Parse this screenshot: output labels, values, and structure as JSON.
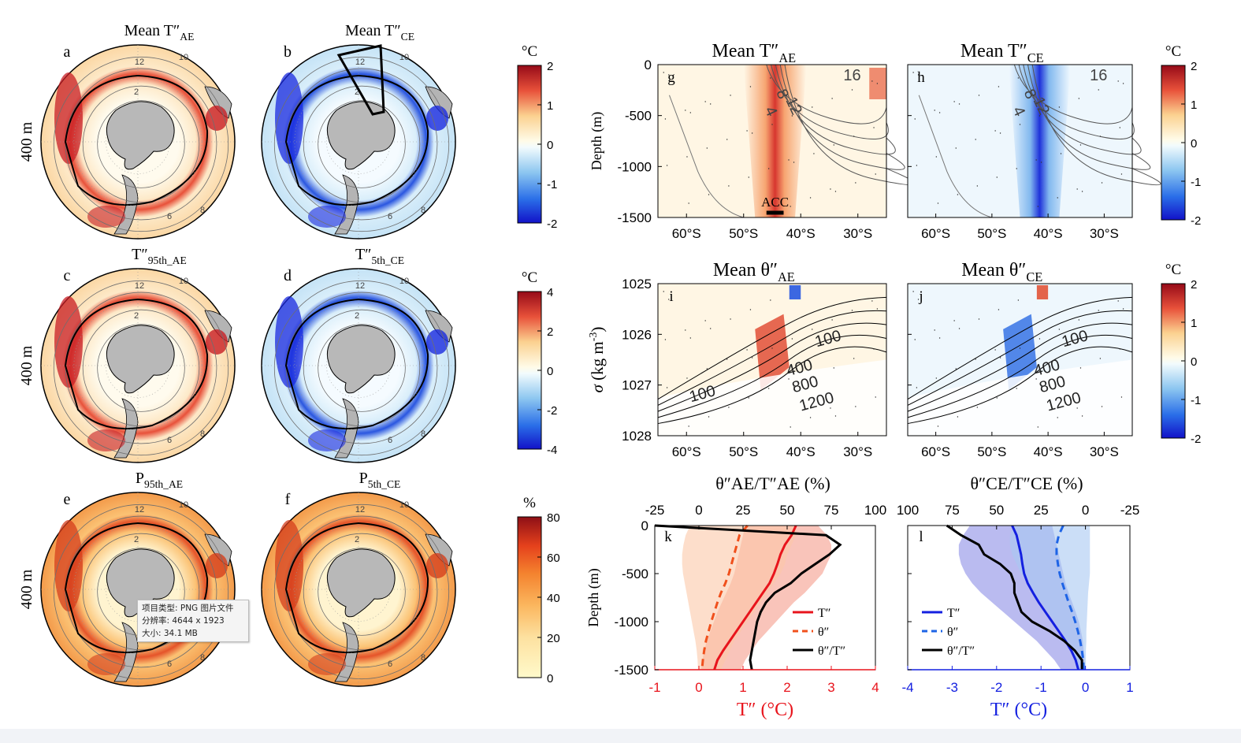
{
  "depth_label": "400 m",
  "maps": [
    {
      "id": "a",
      "title": "Mean T″",
      "sub": "AE",
      "cmap": "rdbu",
      "mode": "ae"
    },
    {
      "id": "b",
      "title": "Mean T″",
      "sub": "CE",
      "cmap": "rdbu",
      "mode": "ce"
    },
    {
      "id": "c",
      "title": "T″",
      "sub": "95th_AE",
      "cmap": "rdbu",
      "mode": "ae"
    },
    {
      "id": "d",
      "title": "T″",
      "sub": "5th_CE",
      "cmap": "rdbu",
      "mode": "ce"
    },
    {
      "id": "e",
      "title": "P",
      "sub": "95th_AE",
      "cmap": "ylor",
      "mode": "p"
    },
    {
      "id": "f",
      "title": "P",
      "sub": "5th_CE",
      "cmap": "ylor",
      "mode": "p"
    }
  ],
  "map_contour_labels": [
    "2",
    "6",
    "8",
    "10",
    "12"
  ],
  "colorbars": [
    {
      "unit": "°C",
      "ticks": [
        "2",
        "1",
        "0",
        "-1",
        "-2"
      ],
      "cmap": "rdbu"
    },
    {
      "unit": "°C",
      "ticks": [
        "4",
        "2",
        "0",
        "-2",
        "-4"
      ],
      "cmap": "rdbu"
    },
    {
      "unit": "%",
      "ticks": [
        "80",
        "60",
        "40",
        "20",
        "0"
      ],
      "cmap": "ylor"
    },
    {
      "unit": "°C",
      "ticks": [
        "2",
        "1",
        "0",
        "-1",
        "-2"
      ],
      "cmap": "rdbu"
    },
    {
      "unit": "°C",
      "ticks": [
        "2",
        "1",
        "0",
        "-1",
        "-2"
      ],
      "cmap": "rdbu"
    }
  ],
  "tooltip": {
    "line1": "项目类型: PNG 图片文件",
    "line2": "分辨率: 4644 x 1923",
    "line3": "大小: 34.1 MB"
  },
  "chart_data": [
    {
      "panel": "g",
      "type": "heatmap",
      "title": "Mean T″",
      "title_sub": "AE",
      "ylabel": "Depth (m)",
      "yticks": [
        0,
        -500,
        -1000,
        -1500
      ],
      "ylim": [
        -1500,
        0
      ],
      "xticks": [
        "60°S",
        "50°S",
        "40°S",
        "30°S"
      ],
      "xlim": [
        -65,
        -25
      ],
      "anomaly_core_lat": -45,
      "anomaly_max": 2,
      "contour_labels": [
        "16",
        "12",
        "8",
        "4"
      ],
      "annotation": "ACC",
      "acc_range": [
        -46,
        -43
      ]
    },
    {
      "panel": "h",
      "type": "heatmap",
      "title": "Mean T″",
      "title_sub": "CE",
      "yticks": [
        0,
        -500,
        -1000,
        -1500
      ],
      "ylim": [
        -1500,
        0
      ],
      "xticks": [
        "60°S",
        "50°S",
        "40°S",
        "30°S"
      ],
      "xlim": [
        -65,
        -25
      ],
      "anomaly_core_lat": -42,
      "anomaly_min": -2,
      "contour_labels": [
        "16",
        "12",
        "8",
        "4"
      ]
    },
    {
      "panel": "i",
      "type": "heatmap",
      "title": "Mean θ″",
      "title_sub": "AE",
      "ylabel": "σ (kg m-3)",
      "yticks": [
        1025,
        1026,
        1027,
        1028
      ],
      "ylim": [
        1025,
        1028
      ],
      "xticks": [
        "60°S",
        "50°S",
        "40°S",
        "30°S"
      ],
      "xlim": [
        -65,
        -25
      ],
      "contour_labels": [
        "100",
        "400",
        "800",
        "1200",
        "100"
      ]
    },
    {
      "panel": "j",
      "type": "heatmap",
      "title": "Mean θ″",
      "title_sub": "CE",
      "yticks": [
        1025,
        1026,
        1027,
        1028
      ],
      "ylim": [
        1025,
        1028
      ],
      "xticks": [
        "60°S",
        "50°S",
        "40°S",
        "30°S"
      ],
      "xlim": [
        -65,
        -25
      ],
      "contour_labels": [
        "100",
        "400",
        "800",
        "1200"
      ]
    },
    {
      "panel": "k",
      "type": "line",
      "ylabel": "Depth (m)",
      "yticks": [
        0,
        -500,
        -1000,
        -1500
      ],
      "ylim": [
        -1500,
        0
      ],
      "xlabel": "T″ (°C)",
      "xticks": [
        -1,
        0,
        1,
        2,
        3,
        4
      ],
      "xlim": [
        -1,
        4
      ],
      "top_xlabel": "θ″AE/T″AE (%)",
      "top_xticks": [
        -25,
        0,
        25,
        50,
        75,
        100
      ],
      "top_xlim": [
        -25,
        100
      ],
      "depth": [
        0,
        -100,
        -200,
        -300,
        -400,
        -500,
        -600,
        -700,
        -800,
        -900,
        -1000,
        -1100,
        -1200,
        -1300,
        -1400,
        -1500
      ],
      "series": [
        {
          "name": "T″",
          "axis": "bottom",
          "style": "solid",
          "color": "#e8141c",
          "values": [
            2.2,
            2.1,
            1.95,
            1.85,
            1.78,
            1.7,
            1.6,
            1.45,
            1.3,
            1.15,
            1.0,
            0.85,
            0.7,
            0.55,
            0.42,
            0.35
          ],
          "band_lo": [
            1.05,
            1.0,
            0.95,
            0.9,
            0.85,
            0.8,
            0.72,
            0.62,
            0.52,
            0.42,
            0.34,
            0.26,
            0.18,
            0.12,
            0.08,
            0.05
          ],
          "band_hi": [
            2.7,
            2.9,
            3.0,
            3.0,
            2.9,
            2.8,
            2.6,
            2.4,
            2.15,
            1.95,
            1.75,
            1.55,
            1.35,
            1.2,
            1.05,
            0.95
          ]
        },
        {
          "name": "θ″",
          "axis": "bottom",
          "style": "dashed",
          "color": "#f0501c",
          "values": [
            1.1,
            0.92,
            0.86,
            0.8,
            0.74,
            0.68,
            0.6,
            0.5,
            0.42,
            0.35,
            0.28,
            0.22,
            0.16,
            0.12,
            0.09,
            0.07
          ],
          "band_lo": [
            -0.2,
            -0.3,
            -0.35,
            -0.38,
            -0.38,
            -0.36,
            -0.32,
            -0.28,
            -0.24,
            -0.2,
            -0.16,
            -0.12,
            -0.08,
            -0.05,
            -0.03,
            -0.02
          ],
          "band_hi": [
            2.2,
            2.2,
            2.1,
            2.0,
            1.95,
            1.85,
            1.7,
            1.55,
            1.4,
            1.25,
            1.1,
            0.95,
            0.8,
            0.7,
            0.6,
            0.5
          ]
        },
        {
          "name": "θ″/T″",
          "axis": "top",
          "style": "solid",
          "color": "#000000",
          "values": [
            -25,
            72,
            80,
            74,
            66,
            58,
            52,
            43,
            38,
            35,
            33,
            32,
            31,
            30,
            29,
            30
          ]
        }
      ]
    },
    {
      "panel": "l",
      "type": "line",
      "yticks": [
        0,
        -500,
        -1000,
        -1500
      ],
      "ylim": [
        -1500,
        0
      ],
      "xlabel": "T″ (°C)",
      "xticks": [
        -4,
        -3,
        -2,
        -1,
        0,
        1
      ],
      "xlim": [
        -4,
        1
      ],
      "top_xlabel": "θ″CE/T″CE (%)",
      "top_xticks": [
        100,
        75,
        50,
        25,
        0,
        -25
      ],
      "top_xlim": [
        100,
        -25
      ],
      "depth": [
        0,
        -100,
        -200,
        -300,
        -400,
        -500,
        -600,
        -700,
        -800,
        -900,
        -1000,
        -1100,
        -1200,
        -1300,
        -1400,
        -1500
      ],
      "series": [
        {
          "name": "T″",
          "axis": "bottom",
          "style": "solid",
          "color": "#1420e0",
          "values": [
            -1.65,
            -1.55,
            -1.5,
            -1.45,
            -1.42,
            -1.38,
            -1.3,
            -1.18,
            -1.05,
            -0.9,
            -0.75,
            -0.6,
            -0.45,
            -0.32,
            -0.22,
            -0.16
          ],
          "band_lo": [
            -2.6,
            -2.75,
            -2.85,
            -2.85,
            -2.8,
            -2.7,
            -2.55,
            -2.35,
            -2.1,
            -1.85,
            -1.6,
            -1.35,
            -1.1,
            -0.9,
            -0.7,
            -0.55
          ],
          "band_hi": [
            -0.75,
            -0.7,
            -0.65,
            -0.6,
            -0.55,
            -0.5,
            -0.45,
            -0.38,
            -0.3,
            -0.22,
            -0.15,
            -0.1,
            -0.06,
            -0.04,
            -0.02,
            -0.01
          ]
        },
        {
          "name": "θ″",
          "axis": "bottom",
          "style": "dashed",
          "color": "#1e64e6",
          "values": [
            -0.5,
            -0.6,
            -0.65,
            -0.65,
            -0.62,
            -0.58,
            -0.52,
            -0.45,
            -0.38,
            -0.3,
            -0.23,
            -0.17,
            -0.12,
            -0.08,
            -0.05,
            -0.04
          ],
          "band_lo": [
            -1.6,
            -1.7,
            -1.7,
            -1.65,
            -1.55,
            -1.45,
            -1.3,
            -1.15,
            -1.0,
            -0.85,
            -0.7,
            -0.55,
            -0.42,
            -0.3,
            -0.22,
            -0.16
          ],
          "band_hi": [
            0.1,
            0.1,
            0.1,
            0.1,
            0.1,
            0.1,
            0.08,
            0.06,
            0.05,
            0.04,
            0.03,
            0.02,
            0.02,
            0.01,
            0.01,
            0.01
          ]
        },
        {
          "name": "θ″/T″",
          "axis": "top",
          "style": "solid",
          "color": "#000000",
          "values": [
            78,
            70,
            60,
            57,
            48,
            42,
            40,
            40,
            38,
            36,
            30,
            20,
            12,
            6,
            2,
            2
          ]
        }
      ]
    }
  ]
}
